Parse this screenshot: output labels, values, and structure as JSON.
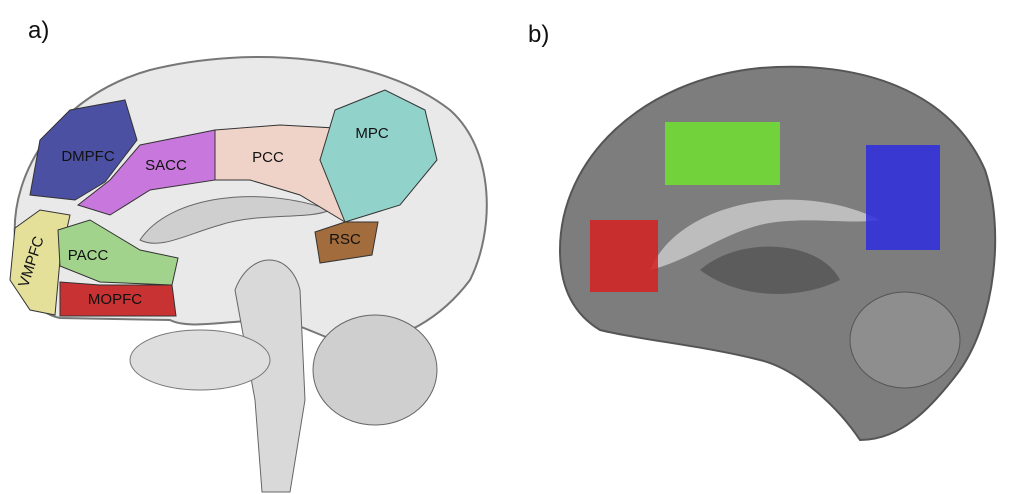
{
  "panels": [
    {
      "label": "a)",
      "regions": [
        {
          "label": "DMPFC"
        },
        {
          "label": "SACC"
        },
        {
          "label": "PCC"
        },
        {
          "label": "MPC"
        },
        {
          "label": "VMPFC"
        },
        {
          "label": "PACC"
        },
        {
          "label": "RSC"
        },
        {
          "label": "MOPFC"
        }
      ]
    },
    {
      "label": "b)"
    }
  ]
}
